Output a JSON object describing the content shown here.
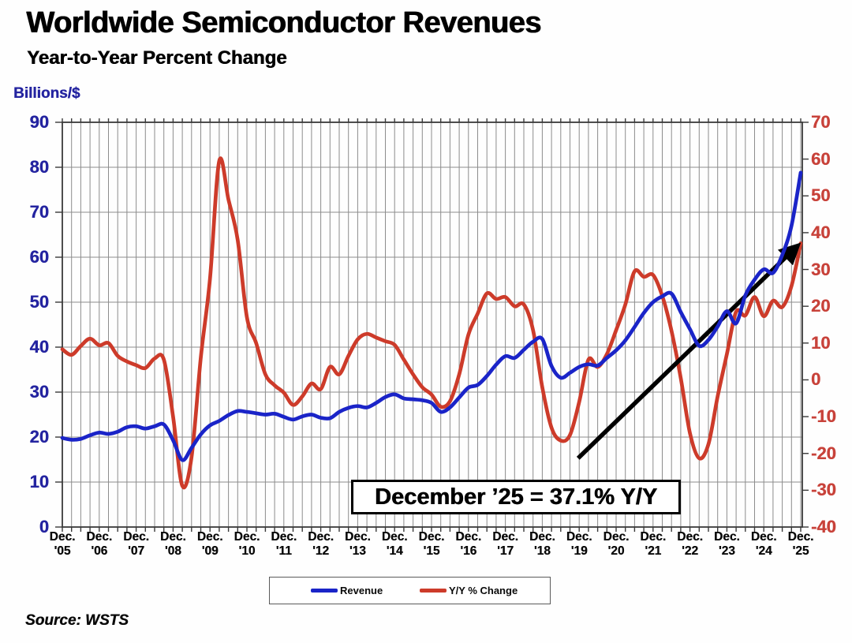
{
  "header": {
    "title": "Worldwide Semiconductor Revenues",
    "subtitle": "Year-to-Year Percent Change"
  },
  "source_note": "Source: WSTS",
  "annotation_box": {
    "text": "December ’25 = 37.1% Y/Y"
  },
  "legend": {
    "items": [
      {
        "label": "Revenue",
        "color": "#1a24c8"
      },
      {
        "label": "Y/Y % Change",
        "color": "#cd3b2a"
      }
    ]
  },
  "colors": {
    "grid": "#8c8c8c",
    "frame": "#3a3a3a",
    "arrow": "#000000",
    "left_axis_text": "#2424a0",
    "right_axis_text": "#c8423a"
  },
  "chart_data": {
    "type": "line",
    "title": "Worldwide Semiconductor Revenues",
    "subtitle": "Year-to-Year Percent Change",
    "x_axis": {
      "month_label": "Dec.",
      "year_labels": [
        "'05",
        "'06",
        "'07",
        "'08",
        "'09",
        "'10",
        "'11",
        "'12",
        "'13",
        "'14",
        "'15",
        "'16",
        "'17",
        "'18",
        "'19",
        "'20",
        "'21",
        "'22",
        "'23",
        "'24",
        "'25"
      ],
      "range_years": [
        0,
        20
      ],
      "minor_grid_step_years": 0.25
    },
    "left_axis": {
      "title": "Billions/$",
      "min": 0,
      "max": 90,
      "ticks": [
        90,
        80,
        70,
        60,
        50,
        40,
        30,
        20,
        10,
        0
      ]
    },
    "right_axis": {
      "min": -40,
      "max": 70,
      "ticks": [
        70,
        60,
        50,
        40,
        30,
        20,
        10,
        0,
        -10,
        -20,
        -30,
        -40
      ]
    },
    "grid": {
      "vertical": true,
      "horizontal": true
    },
    "legend_position": "bottom",
    "series": [
      {
        "name": "Revenue",
        "axis": "left",
        "color": "#1a24c8",
        "x_start": 0,
        "x_step_years": 0.25,
        "values": [
          19.8,
          19.4,
          19.6,
          20.4,
          21.0,
          20.7,
          21.2,
          22.2,
          22.4,
          21.9,
          22.4,
          22.8,
          19.3,
          14.9,
          17.6,
          20.6,
          22.6,
          23.6,
          24.9,
          25.8,
          25.6,
          25.3,
          25.0,
          25.2,
          24.5,
          23.9,
          24.6,
          25.0,
          24.3,
          24.2,
          25.6,
          26.5,
          26.9,
          26.6,
          27.6,
          28.9,
          29.5,
          28.6,
          28.4,
          28.2,
          27.6,
          25.6,
          26.6,
          28.8,
          31.0,
          31.6,
          33.6,
          36.1,
          38.0,
          37.6,
          39.4,
          41.2,
          41.8,
          35.8,
          33.2,
          34.3,
          35.6,
          36.2,
          35.9,
          37.6,
          39.3,
          41.5,
          44.5,
          47.6,
          50.0,
          51.3,
          51.9,
          47.8,
          44.0,
          40.3,
          41.6,
          44.6,
          48.0,
          45.3,
          51.5,
          55.0,
          57.3,
          56.5,
          60.5,
          67.0,
          78.8
        ]
      },
      {
        "name": "Y/Y % Change",
        "axis": "right",
        "color": "#cd3b2a",
        "x_start": 0,
        "x_step_years": 0.25,
        "values": [
          8.3,
          6.8,
          9.2,
          11.2,
          9.4,
          10.0,
          6.5,
          5.0,
          4.0,
          3.2,
          5.8,
          5.5,
          -10.0,
          -28.8,
          -21.0,
          6.0,
          27.5,
          59.5,
          49.0,
          38.0,
          17.0,
          10.0,
          1.5,
          -1.5,
          -3.5,
          -6.8,
          -4.5,
          -1.0,
          -2.5,
          3.5,
          1.5,
          6.5,
          11.0,
          12.5,
          11.5,
          10.5,
          9.5,
          5.5,
          1.5,
          -2.0,
          -4.0,
          -7.3,
          -5.8,
          1.5,
          12.3,
          18.0,
          23.5,
          22.0,
          22.5,
          20.0,
          20.5,
          13.5,
          -2.0,
          -13.0,
          -16.5,
          -15.0,
          -6.0,
          5.5,
          3.5,
          7.0,
          13.5,
          20.5,
          29.5,
          28.0,
          28.5,
          22.8,
          13.3,
          0.5,
          -14.5,
          -21.3,
          -17.5,
          -4.5,
          7.0,
          18.5,
          17.5,
          22.5,
          17.3,
          21.5,
          19.8,
          25.5,
          37.1
        ]
      }
    ],
    "annotation": {
      "label": "December ’25 = 37.1% Y/Y",
      "highlight_value_pct": 37.1
    },
    "arrow": {
      "x1_years": 13.97,
      "y1_right_value": -21.3,
      "x2_years": 19.87,
      "y2_right_value": 36.0
    }
  }
}
